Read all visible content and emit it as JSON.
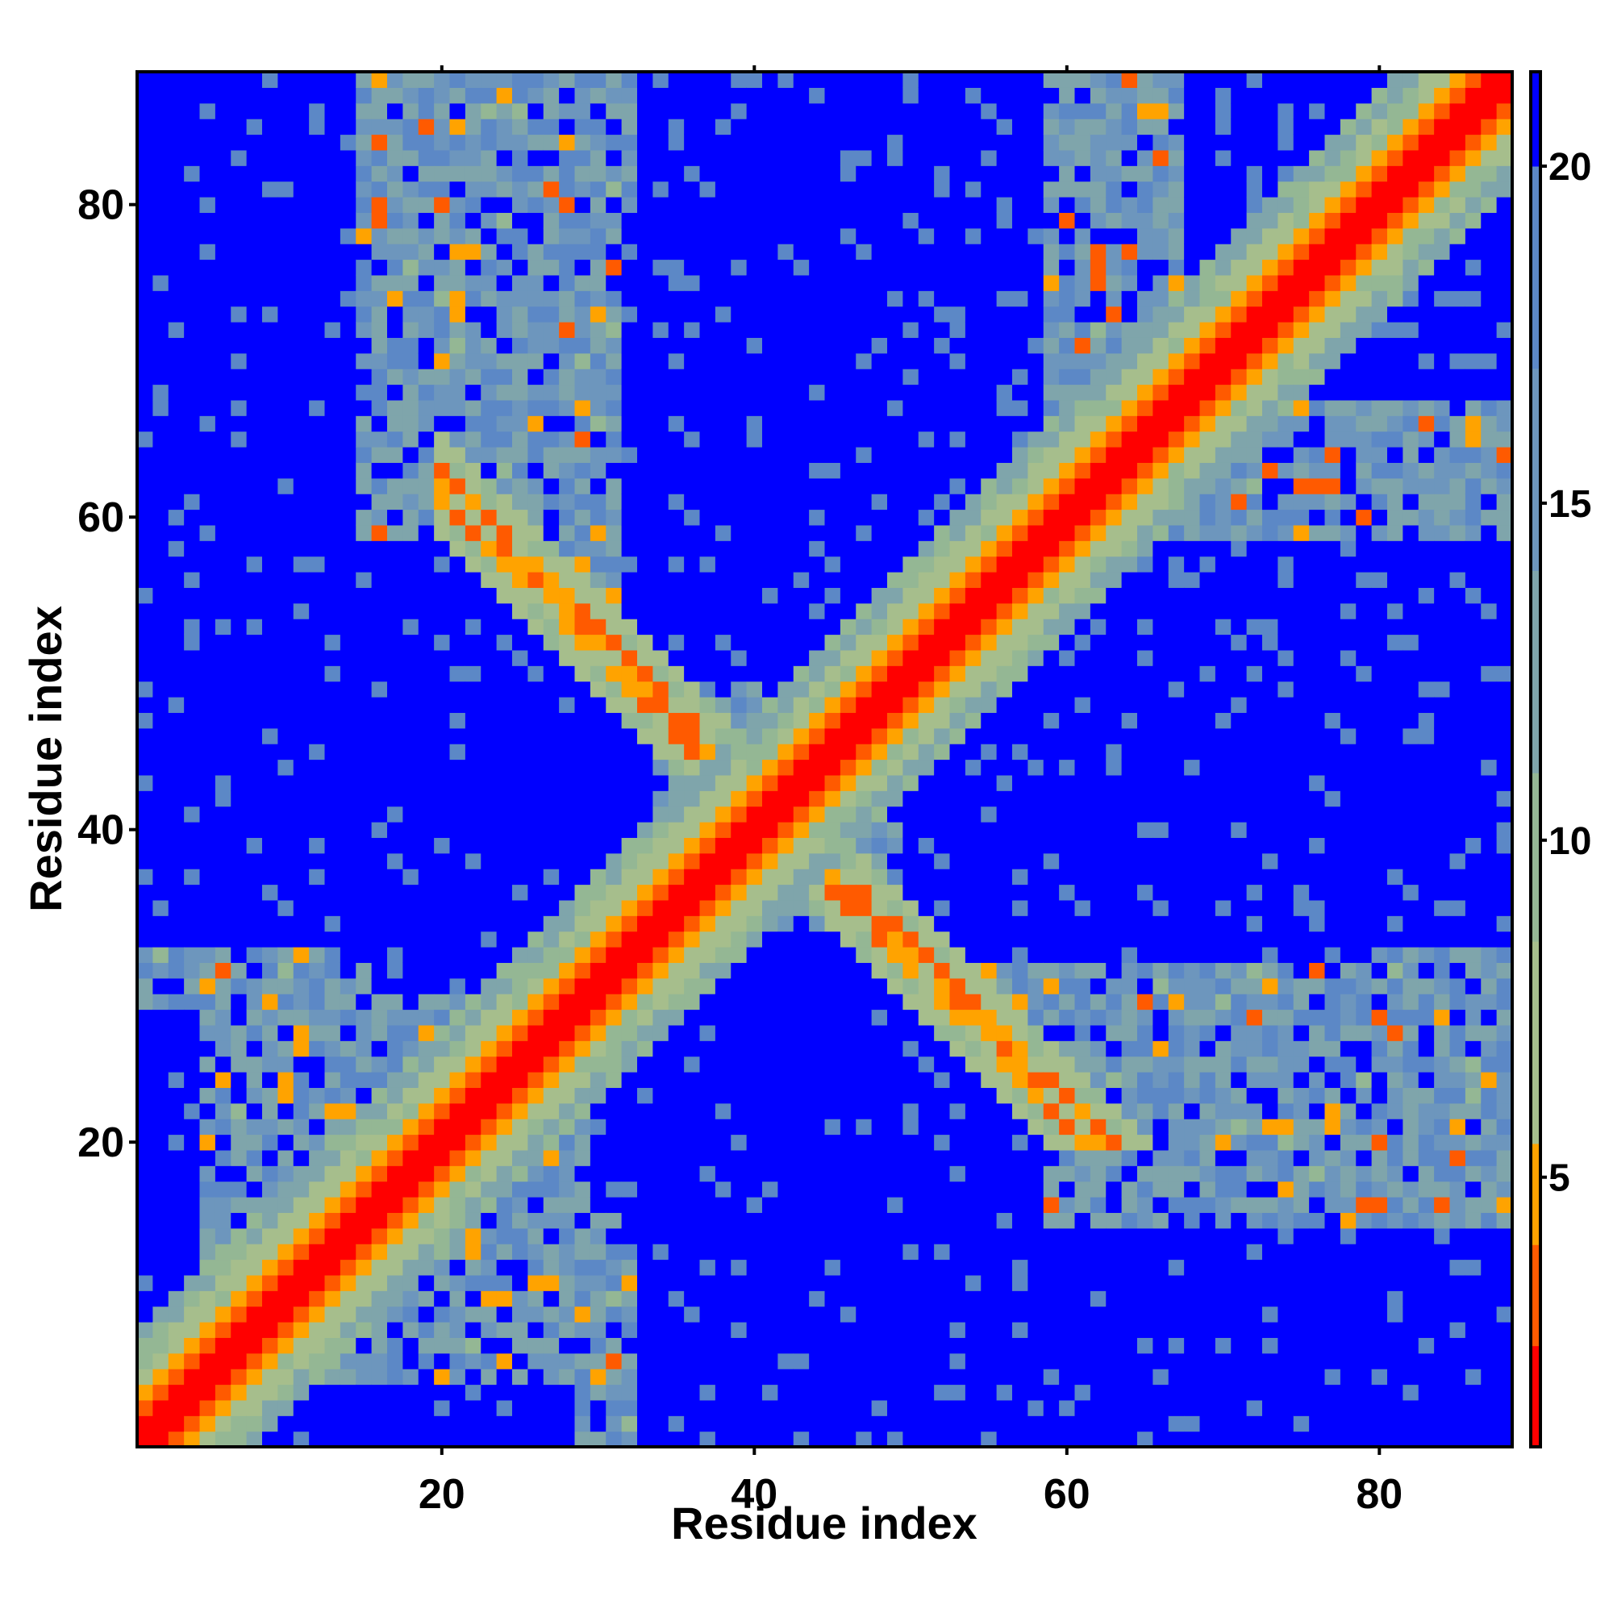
{
  "chart_data": {
    "type": "heatmap",
    "title": "",
    "xlabel": "Residue index",
    "ylabel": "Residue index",
    "n_residues": 88,
    "xlim": [
      0.5,
      88.5
    ],
    "ylim": [
      0.5,
      88.5
    ],
    "x_ticks": [
      20,
      40,
      60,
      80
    ],
    "y_ticks": [
      20,
      40,
      60,
      80
    ],
    "colorbar": {
      "ticks": [
        5,
        10,
        15,
        20
      ],
      "range": [
        1,
        21.4
      ],
      "orientation": "vertical",
      "position": "right"
    },
    "colormap": [
      {
        "max": 2.5,
        "color": "#ff0000"
      },
      {
        "max": 4.0,
        "color": "#ff5a00"
      },
      {
        "max": 5.5,
        "color": "#ffa300"
      },
      {
        "max": 8.5,
        "color": "#a6be8c"
      },
      {
        "max": 11.0,
        "color": "#94b794"
      },
      {
        "max": 14.0,
        "color": "#7fa5ab"
      },
      {
        "max": 17.0,
        "color": "#6d96bd"
      },
      {
        "max": 20.0,
        "color": "#5c88c6"
      },
      {
        "max": 99,
        "color": "#0000ff"
      }
    ],
    "matrix_description": "Symmetric residue-residue distance map (Angstrom). Values near 0 on diagonal, blue = 20 or more.",
    "contact_regions": [
      {
        "kind": "diagonal_band",
        "from": 1,
        "to": 88,
        "width": 4
      },
      {
        "kind": "antidiagonal_band",
        "center": 41,
        "extent": [
          20,
          66
        ],
        "width": 3
      }
    ],
    "far_regions": [
      {
        "x": [
          2,
          10
        ],
        "y": [
          58,
          88
        ]
      },
      {
        "x": [
          16,
          33
        ],
        "y": [
          30,
          50
        ]
      },
      {
        "x": [
          33,
          58
        ],
        "y": [
          63,
          88
        ]
      },
      {
        "x": [
          33,
          58
        ],
        "y": [
          1,
          28
        ]
      },
      {
        "x": [
          50,
          78
        ],
        "y": [
          32,
          54
        ]
      },
      {
        "x": [
          58,
          88
        ],
        "y": [
          1,
          14
        ]
      },
      {
        "x": [
          68,
          88
        ],
        "y": [
          70,
          88
        ]
      },
      {
        "x": [
          1,
          4
        ],
        "y": [
          1,
          28
        ]
      }
    ]
  }
}
